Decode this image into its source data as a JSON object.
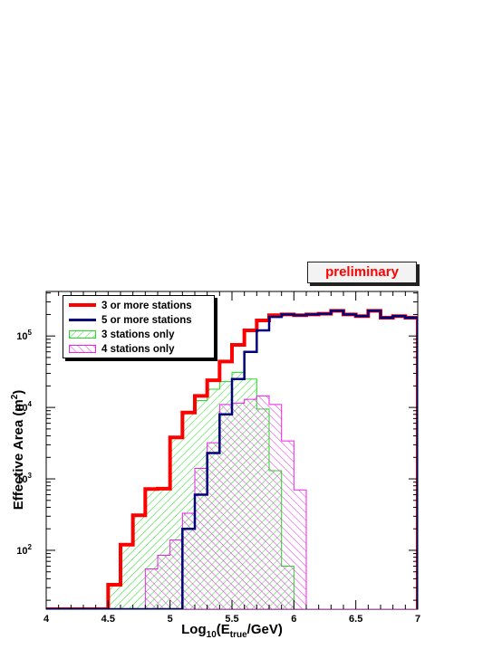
{
  "badge": {
    "text": "preliminary"
  },
  "legend": [
    {
      "label": "3 or more stations"
    },
    {
      "label": "5 or more stations"
    },
    {
      "label": "3 stations only"
    },
    {
      "label": "4 stations only"
    }
  ],
  "colors": {
    "three_or_more": "#ff0000",
    "five_or_more": "#00007a",
    "three_only": "#22dd22",
    "four_only": "#ee22ee"
  },
  "chart_data": {
    "type": "histogram",
    "xlabel": "Log10(Etrue/GeV)",
    "xlabel_parts": {
      "pre": "Log",
      "sub1": "10",
      "mid": "(E",
      "sub2": "true",
      "post": "/GeV)"
    },
    "ylabel": "Effective Area (m2)",
    "ylabel_parts": {
      "pre": "Effective Area (m",
      "sup": "2",
      "post": ")"
    },
    "xlim": [
      4,
      7
    ],
    "ylim": [
      15,
      420000
    ],
    "yscale": "log",
    "x_ticks": [
      "4",
      "4.5",
      "5",
      "5.5",
      "6",
      "6.5",
      "7"
    ],
    "y_ticks": [
      {
        "value": 100,
        "base": "10",
        "exp": "2"
      },
      {
        "value": 1000,
        "base": "10",
        "exp": "3"
      },
      {
        "value": 10000,
        "base": "10",
        "exp": "4"
      },
      {
        "value": 100000,
        "base": "10",
        "exp": "5"
      }
    ],
    "bin_edges": [
      4.0,
      4.1,
      4.2,
      4.3,
      4.4,
      4.5,
      4.6,
      4.7,
      4.8,
      4.9,
      5.0,
      5.1,
      5.2,
      5.3,
      5.4,
      5.5,
      5.6,
      5.7,
      5.8,
      5.9,
      6.0,
      6.1,
      6.2,
      6.3,
      6.4,
      6.5,
      6.6,
      6.7,
      6.8,
      6.9,
      7.0
    ],
    "series": [
      {
        "name": "3 or more stations",
        "values": [
          15,
          15,
          15,
          15,
          15,
          33,
          120,
          310,
          720,
          730,
          3800,
          8500,
          14500,
          24000,
          44000,
          75000,
          120000,
          165000,
          195000,
          200000,
          195000,
          200000,
          205000,
          225000,
          200000,
          190000,
          225000,
          180000,
          190000,
          180000
        ]
      },
      {
        "name": "5 or more stations",
        "values": [
          15,
          15,
          15,
          15,
          15,
          15,
          15,
          15,
          15,
          15,
          15,
          200,
          600,
          2300,
          8000,
          25000,
          60000,
          120000,
          185000,
          200000,
          195000,
          200000,
          205000,
          225000,
          200000,
          190000,
          225000,
          180000,
          190000,
          180000
        ]
      },
      {
        "name": "3 stations only",
        "values": [
          15,
          15,
          15,
          15,
          15,
          33,
          120,
          310,
          720,
          730,
          3800,
          8200,
          12500,
          18000,
          23000,
          31000,
          25000,
          9500,
          1300,
          60,
          15,
          15,
          15,
          15,
          15,
          15,
          15,
          15,
          15,
          15
        ]
      },
      {
        "name": "4 stations only",
        "values": [
          15,
          15,
          15,
          15,
          15,
          15,
          15,
          15,
          55,
          85,
          140,
          330,
          1400,
          3200,
          11000,
          11500,
          13000,
          14500,
          11000,
          3400,
          700,
          15,
          15,
          15,
          15,
          15,
          15,
          15,
          15,
          15
        ]
      }
    ],
    "legend_position": "top-left",
    "grid": false
  }
}
